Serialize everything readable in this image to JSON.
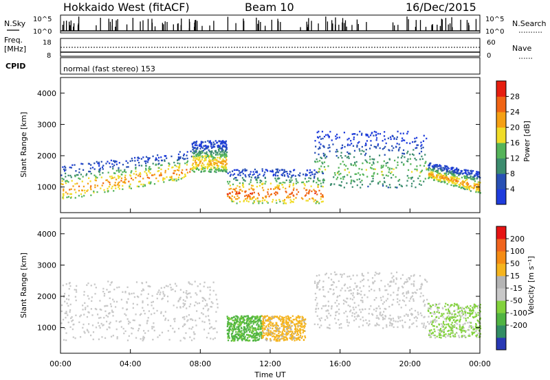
{
  "header": {
    "station": "Hokkaido West (fitACF)",
    "beam": "Beam 10",
    "date": "16/Dec/2015"
  },
  "noise_panel": {
    "left_label": "N.Sky",
    "right_label": "N.Search",
    "left_ticks": [
      "10^5",
      "10^0"
    ],
    "right_ticks": [
      "10^5",
      "10^0"
    ]
  },
  "freq_panel": {
    "left_label_line1": "Freq.",
    "left_label_line2": "[MHz]",
    "left_ticks": [
      "18",
      "8"
    ],
    "right_label": "Nave",
    "right_ticks": [
      "60",
      "0"
    ]
  },
  "cpid": {
    "label": "CPID",
    "text": "normal (fast stereo) 153"
  },
  "colors": {
    "power_scale": [
      "#1e3cdc",
      "#2850b4",
      "#3c8c6e",
      "#55b45a",
      "#f0dc28",
      "#f5a014",
      "#f06414",
      "#e61e0f"
    ],
    "velocity_scale": [
      "#2838b4",
      "#328c64",
      "#50b442",
      "#82d23c",
      "#c8c8c8",
      "#b4b4b4",
      "#f5b41e",
      "#f58c14",
      "#f0641e",
      "#e61414"
    ]
  },
  "chart_data": [
    {
      "type": "heatmap",
      "title": "",
      "xlabel": "Time UT",
      "ylabel": "Slant Range [km]",
      "x_ticks": [
        "00:00",
        "04:00",
        "08:00",
        "12:00",
        "16:00",
        "20:00",
        "00:00"
      ],
      "x_range_hours": [
        0,
        24
      ],
      "y_ticks": [
        "1000",
        "2000",
        "3000",
        "4000"
      ],
      "ylim": [
        180,
        4500
      ],
      "colorbar": {
        "label": "Power [dB]",
        "range": [
          0,
          32
        ],
        "ticks": [
          "4",
          "8",
          "12",
          "16",
          "20",
          "24",
          "28"
        ]
      },
      "features": [
        {
          "t": [
            0.0,
            7.5
          ],
          "range_km": [
            600,
            1700
          ],
          "peak_db": 25,
          "shape": "main-band-rising"
        },
        {
          "t": [
            7.5,
            9.5
          ],
          "range_km": [
            1500,
            2500
          ],
          "peak_db": 22,
          "shape": "arc"
        },
        {
          "t": [
            9.5,
            15.0
          ],
          "range_km": [
            500,
            1600
          ],
          "peak_db": 28,
          "shape": "band"
        },
        {
          "t": [
            14.5,
            21.0
          ],
          "range_km": [
            1000,
            2800
          ],
          "peak_db": 16,
          "shape": "patchy"
        },
        {
          "t": [
            21.0,
            24.0
          ],
          "range_km": [
            700,
            1800
          ],
          "peak_db": 24,
          "shape": "descending-band"
        }
      ]
    },
    {
      "type": "heatmap",
      "title": "",
      "xlabel": "Time UT",
      "ylabel": "Slant Range [km]",
      "x_ticks": [
        "00:00",
        "04:00",
        "08:00",
        "12:00",
        "16:00",
        "20:00",
        "00:00"
      ],
      "x_range_hours": [
        0,
        24
      ],
      "y_ticks": [
        "1000",
        "2000",
        "3000",
        "4000"
      ],
      "ylim": [
        180,
        4500
      ],
      "colorbar": {
        "label": "Velocity [m s^-1]",
        "ticks": [
          "200",
          "100",
          "50",
          "15",
          "-15",
          "-50",
          "-100",
          "-200"
        ]
      },
      "features": [
        {
          "t": [
            0.0,
            9.0
          ],
          "range_km": [
            600,
            2500
          ],
          "velocity": 0,
          "shape": "ground-grey"
        },
        {
          "t": [
            9.5,
            11.5
          ],
          "range_km": [
            600,
            1400
          ],
          "velocity": 60,
          "shape": "green"
        },
        {
          "t": [
            11.5,
            14.0
          ],
          "range_km": [
            600,
            1400
          ],
          "velocity": -60,
          "shape": "orange"
        },
        {
          "t": [
            14.5,
            21.0
          ],
          "range_km": [
            1000,
            2800
          ],
          "velocity": 0,
          "shape": "patchy-grey"
        },
        {
          "t": [
            21.0,
            24.0
          ],
          "range_km": [
            700,
            1800
          ],
          "velocity": 20,
          "shape": "mixed"
        }
      ]
    }
  ]
}
